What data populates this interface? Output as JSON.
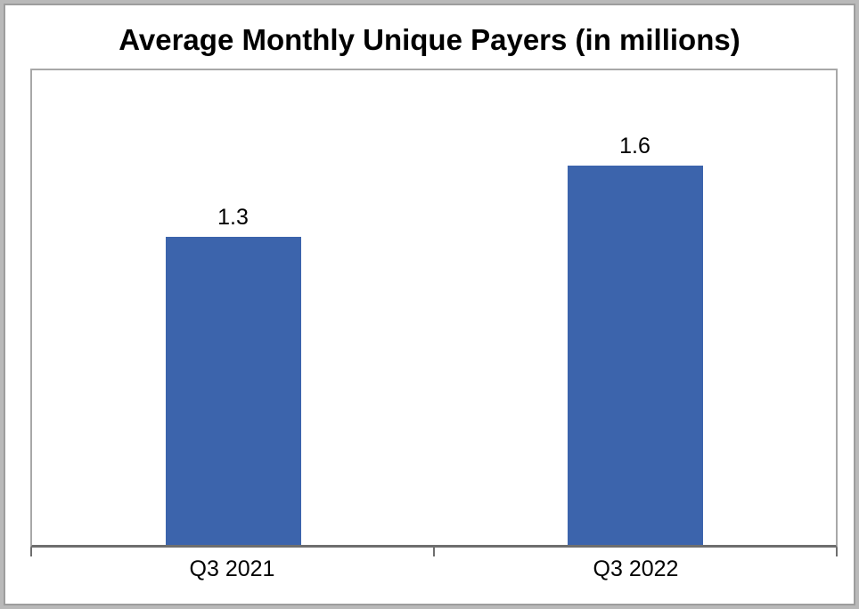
{
  "chart_data": {
    "type": "bar",
    "title": "Average Monthly Unique Payers (in millions)",
    "categories": [
      "Q3 2021",
      "Q3 2022"
    ],
    "values": [
      1.3,
      1.6
    ],
    "xlabel": "",
    "ylabel": "",
    "ylim": [
      0,
      2
    ],
    "grid": false,
    "legend": false,
    "data_labels": true,
    "bar_color": "#3c64ac",
    "axis_color": "#6e6e6e",
    "plot_border_color": "#a8a8a8",
    "frame_border_color": "#b9b9b9",
    "text_color": "#000000",
    "background_color": "#ffffff"
  }
}
